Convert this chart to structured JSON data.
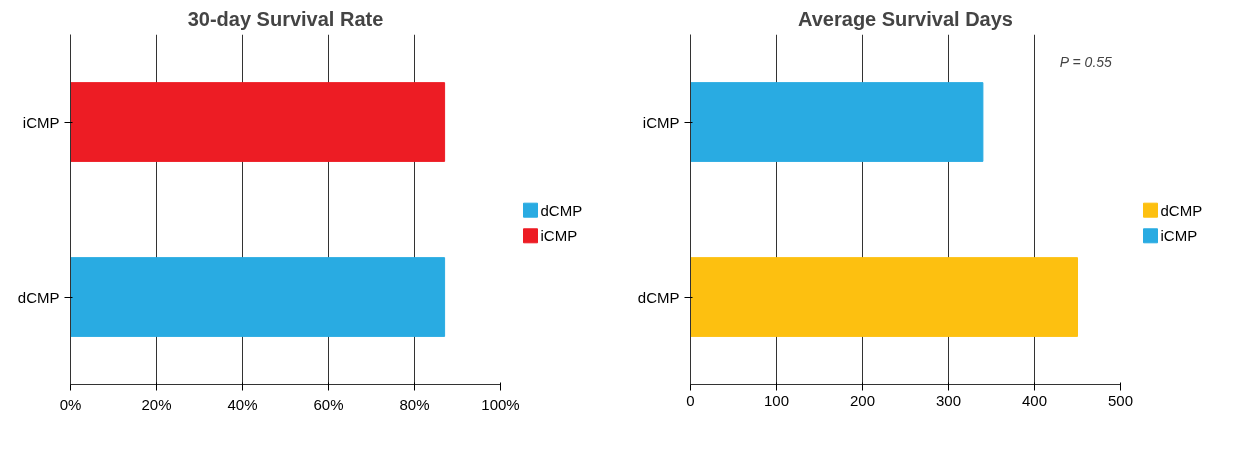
{
  "chart_data": [
    {
      "type": "bar",
      "orientation": "horizontal",
      "title": "30-day Survival Rate",
      "categories": [
        "iCMP",
        "dCMP"
      ],
      "series": [
        {
          "name": "dCMP",
          "color": "#29abe2",
          "values": [
            null,
            87
          ]
        },
        {
          "name": "iCMP",
          "color": "#ed1c24",
          "values": [
            87,
            null
          ]
        }
      ],
      "xlim": [
        0,
        100
      ],
      "xticks": [
        {
          "value": 0,
          "label": "0%"
        },
        {
          "value": 20,
          "label": "20%"
        },
        {
          "value": 40,
          "label": "40%"
        },
        {
          "value": 60,
          "label": "60%"
        },
        {
          "value": 80,
          "label": "80%"
        },
        {
          "value": 100,
          "label": "100%"
        }
      ],
      "grid": "x",
      "legend": "right"
    },
    {
      "type": "bar",
      "orientation": "horizontal",
      "title": "Average Survival Days",
      "categories": [
        "iCMP",
        "dCMP"
      ],
      "series": [
        {
          "name": "dCMP",
          "color": "#fdc010",
          "values": [
            null,
            450
          ]
        },
        {
          "name": "iCMP",
          "color": "#29abe2",
          "values": [
            340,
            null
          ]
        }
      ],
      "xlim": [
        0,
        500
      ],
      "xticks": [
        0,
        100,
        200,
        300,
        400,
        500
      ],
      "grid": "x",
      "legend": "right",
      "annotations": [
        "P = 0.55"
      ]
    }
  ]
}
